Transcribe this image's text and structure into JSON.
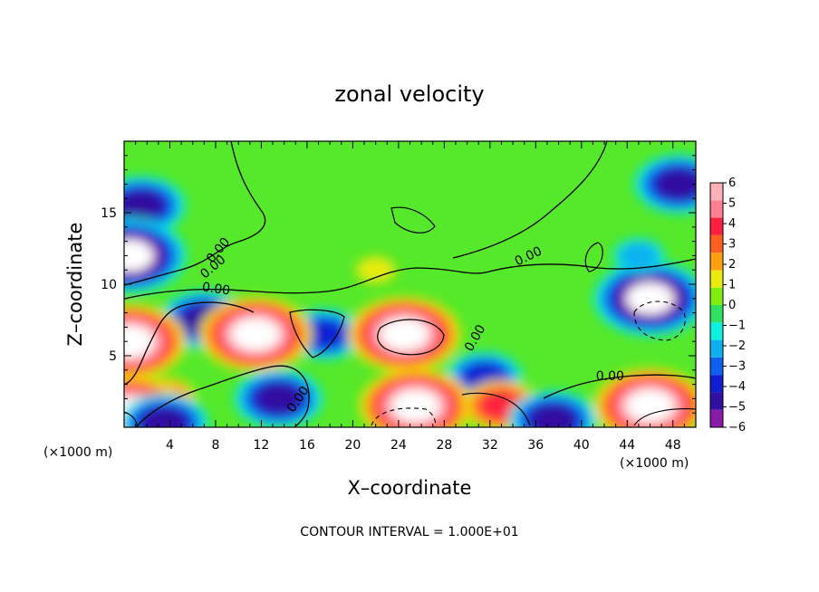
{
  "chart_data": {
    "type": "heatmap",
    "title": "zonal velocity",
    "xlabel": "X–coordinate",
    "ylabel": "Z–coordinate",
    "x_unit": "(×1000 m)",
    "z_unit": "(×1000 m)",
    "xlim": [
      0,
      50
    ],
    "ylim": [
      0,
      20
    ],
    "xticks": [
      4,
      8,
      12,
      16,
      20,
      24,
      28,
      32,
      36,
      40,
      44,
      48
    ],
    "yticks": [
      5,
      10,
      15
    ],
    "colorbar": {
      "min": -6,
      "max": 6,
      "ticks": [
        6,
        5,
        4,
        3,
        2,
        1,
        0,
        -1,
        -2,
        -3,
        -4,
        -5,
        -6
      ],
      "tick_labels": [
        "6",
        "5",
        "4",
        "3",
        "2",
        "1",
        "0",
        "−1",
        "−2",
        "−3",
        "−4",
        "−5",
        "−6"
      ],
      "placement": "right",
      "colors": [
        "#8a1aa8",
        "#3010a0",
        "#1020d0",
        "#1060f0",
        "#10b0f0",
        "#10f0e0",
        "#30e060",
        "#80ee10",
        "#e8ea10",
        "#ffa010",
        "#ff6020",
        "#ff2040",
        "#ff8090",
        "#ffb0b8"
      ]
    },
    "contour_labels": [
      "0.00",
      "0.00",
      "0.00",
      "0.00",
      "0.00",
      "0.00",
      "0.00"
    ],
    "contour_interval_label": "CONTOUR INTERVAL = 1.000E+01",
    "features": [
      {
        "x": 1.5,
        "z": 15.5,
        "value": -5
      },
      {
        "x": 0.5,
        "z": 12.0,
        "value": -7
      },
      {
        "x": 48.5,
        "z": 17.0,
        "value": -5
      },
      {
        "x": 46.0,
        "z": 9.0,
        "value": -7
      },
      {
        "x": 7.0,
        "z": 7.5,
        "value": -5
      },
      {
        "x": 17.5,
        "z": 6.5,
        "value": -4
      },
      {
        "x": 11.5,
        "z": 6.5,
        "value": 7
      },
      {
        "x": 24.5,
        "z": 6.5,
        "value": 7
      },
      {
        "x": 31.5,
        "z": 3.5,
        "value": -4
      },
      {
        "x": 13.5,
        "z": 2.0,
        "value": -5
      },
      {
        "x": 3.5,
        "z": 2.0,
        "value": 3
      },
      {
        "x": 25.5,
        "z": 1.5,
        "value": 7
      },
      {
        "x": 33.0,
        "z": 1.5,
        "value": 4
      },
      {
        "x": 46.0,
        "z": 1.5,
        "value": 7
      },
      {
        "x": 0.5,
        "z": 6.0,
        "value": 7
      },
      {
        "x": 0.5,
        "z": 1.0,
        "value": 7
      },
      {
        "x": 37.5,
        "z": 0.5,
        "value": -5
      },
      {
        "x": 3.5,
        "z": 0.3,
        "value": -5
      },
      {
        "x": 22.0,
        "z": 11.0,
        "value": 1
      },
      {
        "x": 45.0,
        "z": 12.0,
        "value": -2
      }
    ]
  }
}
